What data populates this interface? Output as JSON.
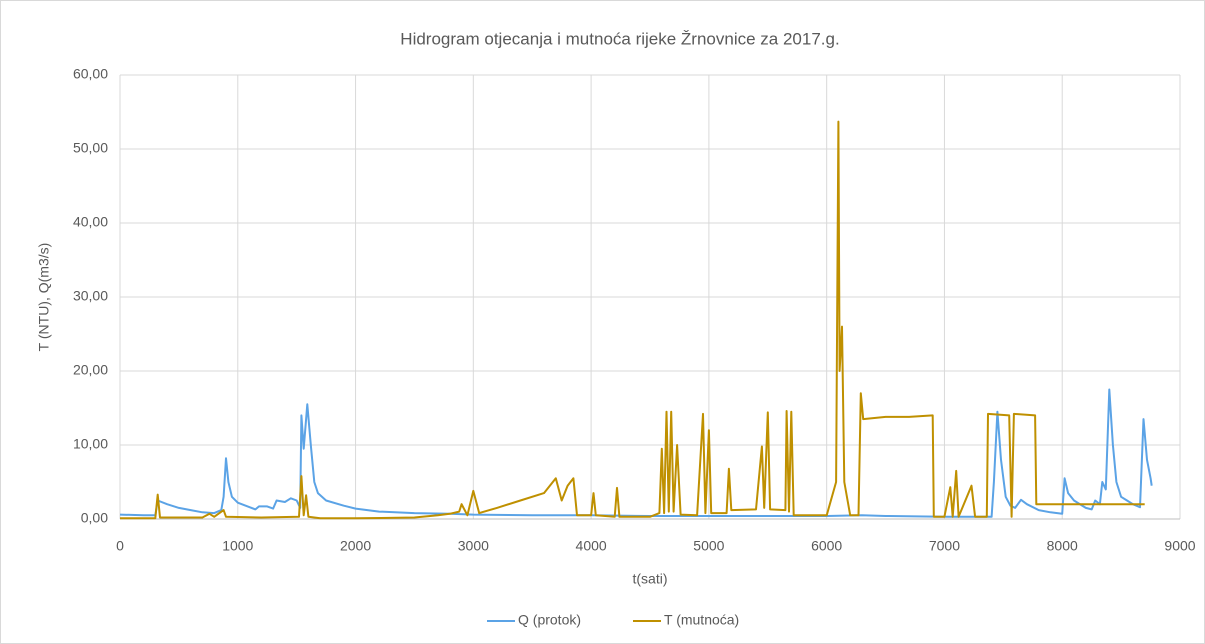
{
  "chart_data": {
    "type": "line",
    "title": "Hidrogram otjecanja i mutnoća rijeke Žrnovnice za 2017.g.",
    "x_label": "t(sati)",
    "y_label": "T (NTU), Q(m3/s)",
    "xlim": [
      0,
      9000
    ],
    "xticks": [
      0,
      1000,
      2000,
      3000,
      4000,
      5000,
      6000,
      7000,
      8000,
      9000
    ],
    "ylim": [
      0,
      60
    ],
    "yticks": [
      {
        "value": 0,
        "label": "0,00"
      },
      {
        "value": 10,
        "label": "10,00"
      },
      {
        "value": 20,
        "label": "20,00"
      },
      {
        "value": 30,
        "label": "30,00"
      },
      {
        "value": 40,
        "label": "40,00"
      },
      {
        "value": 50,
        "label": "50,00"
      },
      {
        "value": 60,
        "label": "60,00"
      }
    ],
    "grid": true,
    "legend": "bottom",
    "series": [
      {
        "name": "Q (protok)",
        "color": "#5ba3e6",
        "x": [
          0,
          200,
          300,
          320,
          400,
          500,
          600,
          700,
          800,
          860,
          880,
          900,
          920,
          950,
          1000,
          1100,
          1150,
          1180,
          1250,
          1300,
          1330,
          1400,
          1450,
          1500,
          1530,
          1540,
          1560,
          1590,
          1620,
          1650,
          1680,
          1750,
          1900,
          2000,
          2200,
          2500,
          2800,
          3000,
          3500,
          4000,
          4500,
          5000,
          5500,
          6000,
          6300,
          6500,
          7000,
          7400,
          7420,
          7450,
          7480,
          7520,
          7560,
          7600,
          7650,
          7700,
          7800,
          7900,
          8000,
          8020,
          8050,
          8100,
          8200,
          8250,
          8280,
          8320,
          8340,
          8370,
          8400,
          8430,
          8460,
          8500,
          8550,
          8600,
          8660,
          8690,
          8720,
          8750,
          8760
        ],
        "values": [
          0.6,
          0.5,
          0.5,
          2.5,
          2.0,
          1.5,
          1.2,
          0.9,
          0.8,
          1.2,
          3,
          8.2,
          5,
          3,
          2.2,
          1.6,
          1.3,
          1.7,
          1.7,
          1.4,
          2.5,
          2.3,
          2.8,
          2.5,
          1.5,
          14,
          9.5,
          15.5,
          10,
          5,
          3.5,
          2.5,
          1.8,
          1.4,
          1.0,
          0.8,
          0.7,
          0.6,
          0.5,
          0.5,
          0.4,
          0.4,
          0.4,
          0.4,
          0.5,
          0.4,
          0.3,
          0.3,
          5,
          14.5,
          8,
          3,
          1.8,
          1.5,
          2.6,
          2.0,
          1.2,
          0.9,
          0.7,
          5.5,
          3.5,
          2.5,
          1.5,
          1.3,
          2.5,
          2,
          5,
          4,
          17.5,
          10,
          5,
          3,
          2.5,
          2,
          1.6,
          13.5,
          8,
          5.5,
          4.5
        ]
      },
      {
        "name": "T (mutnoća)",
        "color": "#bf9000",
        "x": [
          0,
          300,
          320,
          340,
          700,
          760,
          800,
          880,
          900,
          1200,
          1520,
          1540,
          1560,
          1580,
          1600,
          1700,
          2000,
          2500,
          2700,
          2800,
          2880,
          2900,
          2950,
          3000,
          3050,
          3200,
          3400,
          3600,
          3700,
          3750,
          3800,
          3850,
          3880,
          4000,
          4020,
          4040,
          4200,
          4220,
          4240,
          4500,
          4580,
          4600,
          4620,
          4640,
          4660,
          4680,
          4700,
          4730,
          4760,
          4900,
          4950,
          4970,
          5000,
          5020,
          5150,
          5170,
          5190,
          5400,
          5450,
          5470,
          5500,
          5520,
          5650,
          5660,
          5680,
          5700,
          5720,
          6000,
          6080,
          6100,
          6110,
          6130,
          6150,
          6200,
          6270,
          6290,
          6310,
          6500,
          6700,
          6900,
          6910,
          7000,
          7050,
          7070,
          7100,
          7120,
          7230,
          7260,
          7360,
          7370,
          7550,
          7570,
          7590,
          7770,
          7780,
          8000,
          8700
        ],
        "values": [
          0.1,
          0.1,
          3.3,
          0.2,
          0.2,
          0.7,
          0.3,
          1.2,
          0.3,
          0.2,
          0.3,
          5.8,
          0.5,
          3.2,
          0.3,
          0.1,
          0.1,
          0.2,
          0.5,
          0.7,
          1.0,
          2.0,
          0.5,
          3.8,
          0.8,
          1.5,
          2.5,
          3.5,
          5.5,
          2.5,
          4.5,
          5.5,
          0.5,
          0.5,
          3.5,
          0.5,
          0.3,
          4.2,
          0.3,
          0.3,
          0.8,
          9.5,
          0.8,
          14.5,
          1,
          14.5,
          1,
          10,
          0.6,
          0.5,
          14.2,
          0.8,
          12,
          0.8,
          0.8,
          6.8,
          1.2,
          1.3,
          9.8,
          1.5,
          14.4,
          1.3,
          1.2,
          14.6,
          1,
          14.5,
          0.5,
          0.5,
          5,
          53.7,
          20,
          26,
          5,
          0.5,
          0.5,
          17,
          13.5,
          13.8,
          13.8,
          14,
          0.3,
          0.3,
          4.3,
          0.3,
          6.5,
          0.3,
          4.5,
          0.3,
          0.3,
          14.2,
          14,
          0.3,
          14.2,
          14,
          2,
          2,
          2
        ]
      }
    ]
  }
}
